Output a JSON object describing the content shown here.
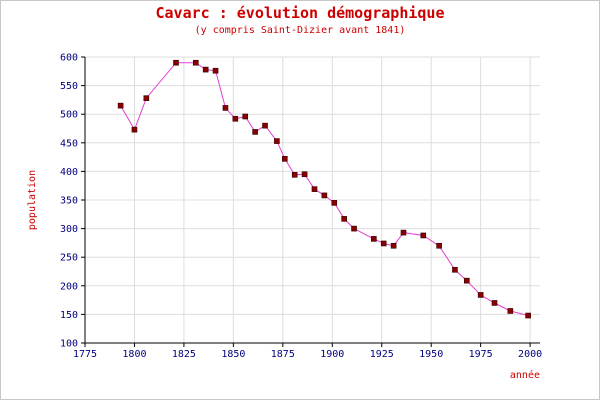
{
  "chart_data": {
    "type": "line",
    "title": "Cavarc  : évolution démographique",
    "subtitle": "(y compris Saint-Dizier avant 1841)",
    "xlabel": "année",
    "ylabel": "population",
    "xlim": [
      1775,
      2005
    ],
    "ylim": [
      100,
      600
    ],
    "xticks": [
      1775,
      1800,
      1825,
      1850,
      1875,
      1900,
      1925,
      1950,
      1975,
      2000
    ],
    "yticks": [
      100,
      150,
      200,
      250,
      300,
      350,
      400,
      450,
      500,
      550,
      600
    ],
    "grid": true,
    "colors": {
      "line": "#e040d0",
      "marker": "#880000",
      "text": "#cc0000",
      "ticks": "#000080"
    },
    "series": [
      {
        "x": [
          1793,
          1800,
          1806,
          1821,
          1831,
          1836,
          1841,
          1846,
          1851,
          1856,
          1861,
          1866,
          1872,
          1876,
          1881,
          1886,
          1891,
          1896,
          1901,
          1906,
          1911,
          1921,
          1926,
          1931,
          1936,
          1946,
          1954,
          1962,
          1968,
          1975,
          1982,
          1990,
          1999
        ],
        "y": [
          515,
          473,
          528,
          590,
          590,
          578,
          576,
          511,
          492,
          496,
          469,
          480,
          453,
          422,
          394,
          395,
          369,
          358,
          345,
          317,
          300,
          282,
          274,
          270,
          293,
          288,
          270,
          228,
          209,
          184,
          170,
          156,
          148
        ]
      }
    ]
  }
}
